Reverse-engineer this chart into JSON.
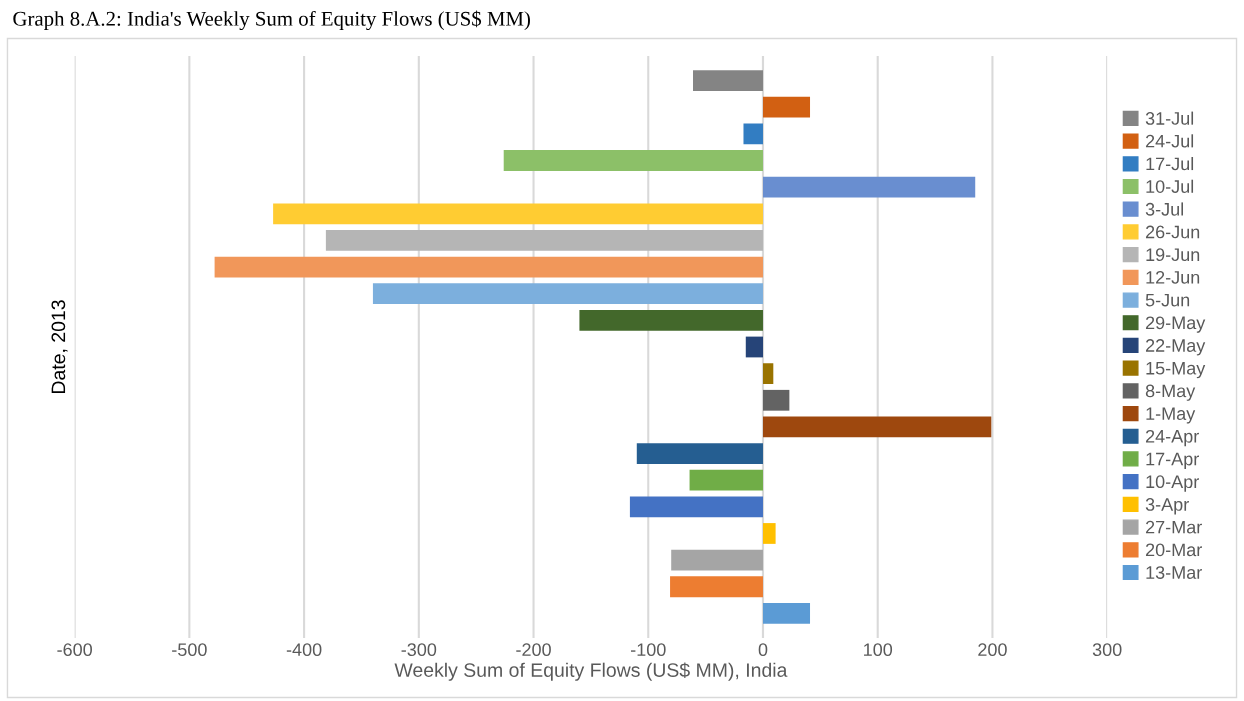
{
  "chart_data": {
    "type": "bar",
    "orientation": "horizontal",
    "title": "Graph 8.A.2: India's Weekly Sum of Equity Flows (US$ MM)",
    "xlabel": "Weekly Sum of Equity Flows (US$ MM), India",
    "ylabel": "Date, 2013",
    "categories": [
      null
    ],
    "xlim": [
      -600,
      300
    ],
    "xticks": [
      -600,
      -500,
      -400,
      -300,
      -200,
      -100,
      0,
      100,
      200,
      300
    ],
    "grid": "x",
    "legend": "right",
    "series": [
      {
        "name": "31-Jul",
        "color": "#848484",
        "values": [
          -61
        ]
      },
      {
        "name": "24-Jul",
        "color": "#d26012",
        "values": [
          41
        ]
      },
      {
        "name": "17-Jul",
        "color": "#327dc2",
        "values": [
          -17
        ]
      },
      {
        "name": "10-Jul",
        "color": "#8cc068",
        "values": [
          -226
        ]
      },
      {
        "name": "3-Jul",
        "color": "#698ed0",
        "values": [
          185
        ]
      },
      {
        "name": "26-Jun",
        "color": "#ffcc32",
        "values": [
          -427
        ]
      },
      {
        "name": "19-Jun",
        "color": "#b5b5b5",
        "values": [
          -381
        ]
      },
      {
        "name": "12-Jun",
        "color": "#f1975a",
        "values": [
          -478
        ]
      },
      {
        "name": "5-Jun",
        "color": "#7cafdd",
        "values": [
          -340
        ]
      },
      {
        "name": "29-May",
        "color": "#43682b",
        "values": [
          -160
        ]
      },
      {
        "name": "22-May",
        "color": "#264478",
        "values": [
          -15
        ]
      },
      {
        "name": "15-May",
        "color": "#997300",
        "values": [
          9
        ]
      },
      {
        "name": "8-May",
        "color": "#636363",
        "values": [
          23
        ]
      },
      {
        "name": "1-May",
        "color": "#9e480e",
        "values": [
          199
        ]
      },
      {
        "name": "24-Apr",
        "color": "#255e91",
        "values": [
          -110
        ]
      },
      {
        "name": "17-Apr",
        "color": "#70ad47",
        "values": [
          -64
        ]
      },
      {
        "name": "10-Apr",
        "color": "#4472c4",
        "values": [
          -116
        ]
      },
      {
        "name": "3-Apr",
        "color": "#ffc000",
        "values": [
          11
        ]
      },
      {
        "name": "27-Mar",
        "color": "#a5a5a5",
        "values": [
          -80
        ]
      },
      {
        "name": "20-Mar",
        "color": "#ed7d31",
        "values": [
          -81
        ]
      },
      {
        "name": "13-Mar",
        "color": "#5b9bd5",
        "values": [
          41
        ]
      }
    ]
  }
}
